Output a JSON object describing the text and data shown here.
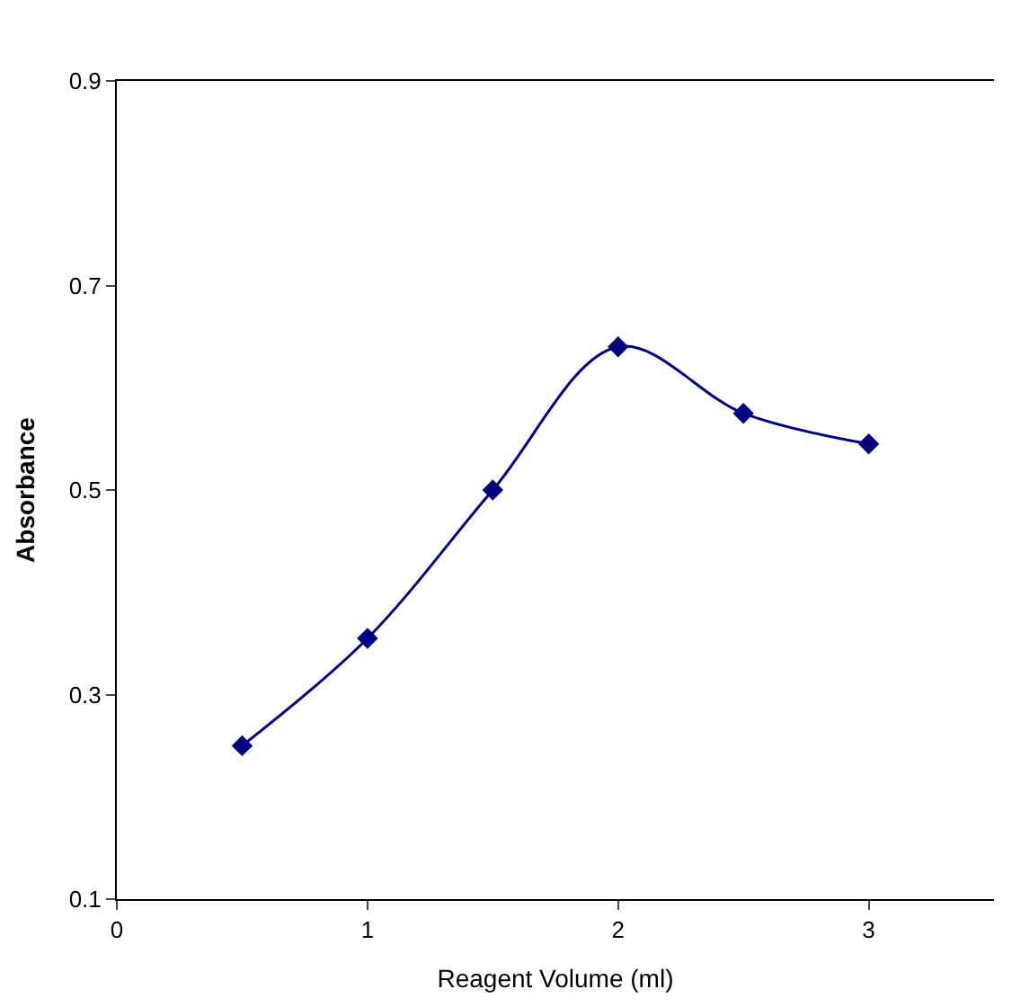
{
  "chart_data": {
    "type": "line",
    "xlabel": "Reagent Volume (ml)",
    "ylabel": "Absorbance",
    "x": [
      0.5,
      1,
      1.5,
      2,
      2.5,
      3
    ],
    "series": [
      {
        "color": "#000080",
        "values": [
          0.25,
          0.355,
          0.5,
          0.64,
          0.575,
          0.545
        ]
      }
    ],
    "xlim": [
      0,
      3.5
    ],
    "xticks": [
      0,
      1,
      2,
      3
    ],
    "ylim": [
      0.1,
      0.9
    ],
    "yticks": [
      0.1,
      0.3,
      0.5,
      0.7,
      0.9
    ],
    "legend": false,
    "marker": "diamond",
    "line_style": "solid"
  }
}
